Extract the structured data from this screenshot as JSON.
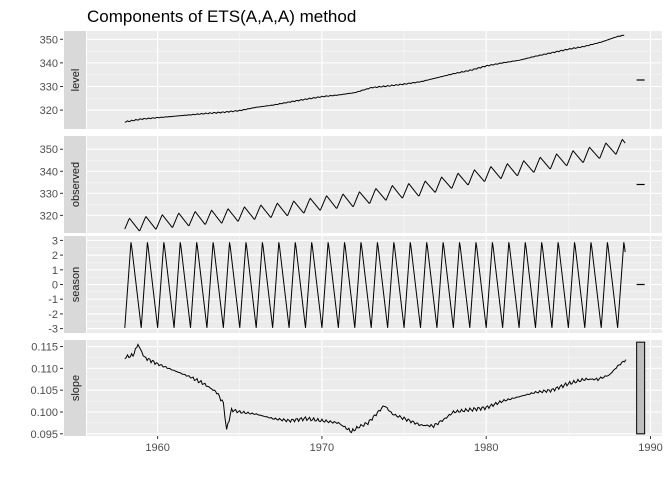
{
  "chart_data": {
    "type": "line",
    "title": "Components of ETS(A,A,A) method",
    "x_tick_labels": [
      "1960",
      "1970",
      "1980",
      "1990"
    ],
    "x_ticks": [
      1960,
      1970,
      1980,
      1990
    ],
    "xlim": [
      1955.7,
      1990.7
    ],
    "panels": [
      {
        "name": "level",
        "ylim": [
          312,
          353.5
        ],
        "y_ticks": [
          320,
          330,
          340,
          350
        ],
        "y_tick_labels": [
          "320",
          "330",
          "340",
          "350"
        ],
        "x": [
          1958.0,
          1958.5,
          1959.0,
          1960.0,
          1961.0,
          1962.0,
          1963.0,
          1964.0,
          1965.0,
          1966.0,
          1967.0,
          1968.0,
          1969.0,
          1970.0,
          1971.0,
          1972.0,
          1973.0,
          1974.0,
          1975.0,
          1976.0,
          1977.0,
          1978.0,
          1979.0,
          1980.0,
          1981.0,
          1982.0,
          1983.0,
          1984.0,
          1985.0,
          1986.0,
          1987.0,
          1988.0,
          1988.4
        ],
        "values": [
          315.0,
          315.6,
          316.2,
          316.8,
          317.4,
          318.0,
          318.6,
          319.1,
          319.8,
          321.2,
          322.1,
          323.4,
          324.6,
          325.7,
          326.4,
          327.4,
          329.5,
          330.2,
          331.0,
          332.0,
          333.7,
          335.4,
          336.8,
          338.7,
          340.0,
          341.1,
          342.8,
          344.3,
          345.8,
          347.0,
          348.8,
          351.2,
          351.7
        ]
      },
      {
        "name": "observed",
        "ylim": [
          312,
          356
        ],
        "y_ticks": [
          320,
          330,
          340,
          350
        ],
        "y_tick_labels": [
          "320",
          "330",
          "340",
          "350"
        ],
        "trend_x": [
          1958.0,
          1960.0,
          1962.0,
          1964.0,
          1966.0,
          1968.0,
          1970.0,
          1972.0,
          1974.0,
          1976.0,
          1978.0,
          1980.0,
          1982.0,
          1984.0,
          1986.0,
          1988.0,
          1988.5
        ],
        "trend": [
          315.3,
          316.9,
          318.4,
          319.6,
          321.3,
          323.0,
          325.5,
          327.1,
          330.1,
          331.9,
          335.5,
          338.6,
          341.2,
          344.3,
          347.2,
          351.0,
          351.5
        ],
        "seasonal_amplitude": 3.2
      },
      {
        "name": "season",
        "ylim": [
          -3.3,
          3.3
        ],
        "y_ticks": [
          -3,
          -2,
          -1,
          0,
          1,
          2,
          3
        ],
        "y_tick_labels": [
          "-3",
          "-2",
          "-1",
          "0",
          "1",
          "2",
          "3"
        ],
        "start": 1958.0,
        "end": 1988.5,
        "amplitude": 2.95
      },
      {
        "name": "slope",
        "ylim": [
          0.0945,
          0.1165
        ],
        "y_ticks": [
          0.095,
          0.1,
          0.105,
          0.11,
          0.115
        ],
        "y_tick_labels": [
          "0.095",
          "0.100",
          "0.105",
          "0.110",
          "0.115"
        ],
        "x": [
          1958.0,
          1958.5,
          1958.8,
          1959.2,
          1960.0,
          1961.0,
          1962.0,
          1962.8,
          1963.6,
          1964.0,
          1964.2,
          1964.5,
          1965.0,
          1966.0,
          1967.0,
          1968.0,
          1969.0,
          1970.0,
          1971.0,
          1971.8,
          1972.2,
          1972.8,
          1973.3,
          1973.8,
          1974.3,
          1975.0,
          1976.0,
          1976.8,
          1977.5,
          1978.0,
          1979.0,
          1980.0,
          1981.0,
          1982.0,
          1983.0,
          1984.0,
          1985.0,
          1986.0,
          1986.8,
          1987.5,
          1988.0,
          1988.5
        ],
        "values": [
          0.1125,
          0.113,
          0.1155,
          0.1125,
          0.111,
          0.1095,
          0.108,
          0.1065,
          0.1045,
          0.102,
          0.096,
          0.1005,
          0.1,
          0.0995,
          0.0985,
          0.098,
          0.0985,
          0.098,
          0.0975,
          0.0955,
          0.0965,
          0.0975,
          0.0995,
          0.1015,
          0.0995,
          0.0985,
          0.097,
          0.0968,
          0.0985,
          0.1,
          0.1005,
          0.101,
          0.1025,
          0.1035,
          0.1045,
          0.105,
          0.1065,
          0.1075,
          0.1075,
          0.1085,
          0.1105,
          0.112
        ]
      }
    ],
    "scale_bars": {
      "level": 0.0,
      "observed": 0.0,
      "season": 0.0,
      "slope": 0.021
    },
    "colors": {
      "panel_background": "#ebebeb",
      "grid_major": "#ffffff",
      "strip_background": "#d9d9d9",
      "line": "#000000",
      "scale_bar_fill": "#bebebe"
    },
    "grid": true,
    "legend": "none"
  }
}
